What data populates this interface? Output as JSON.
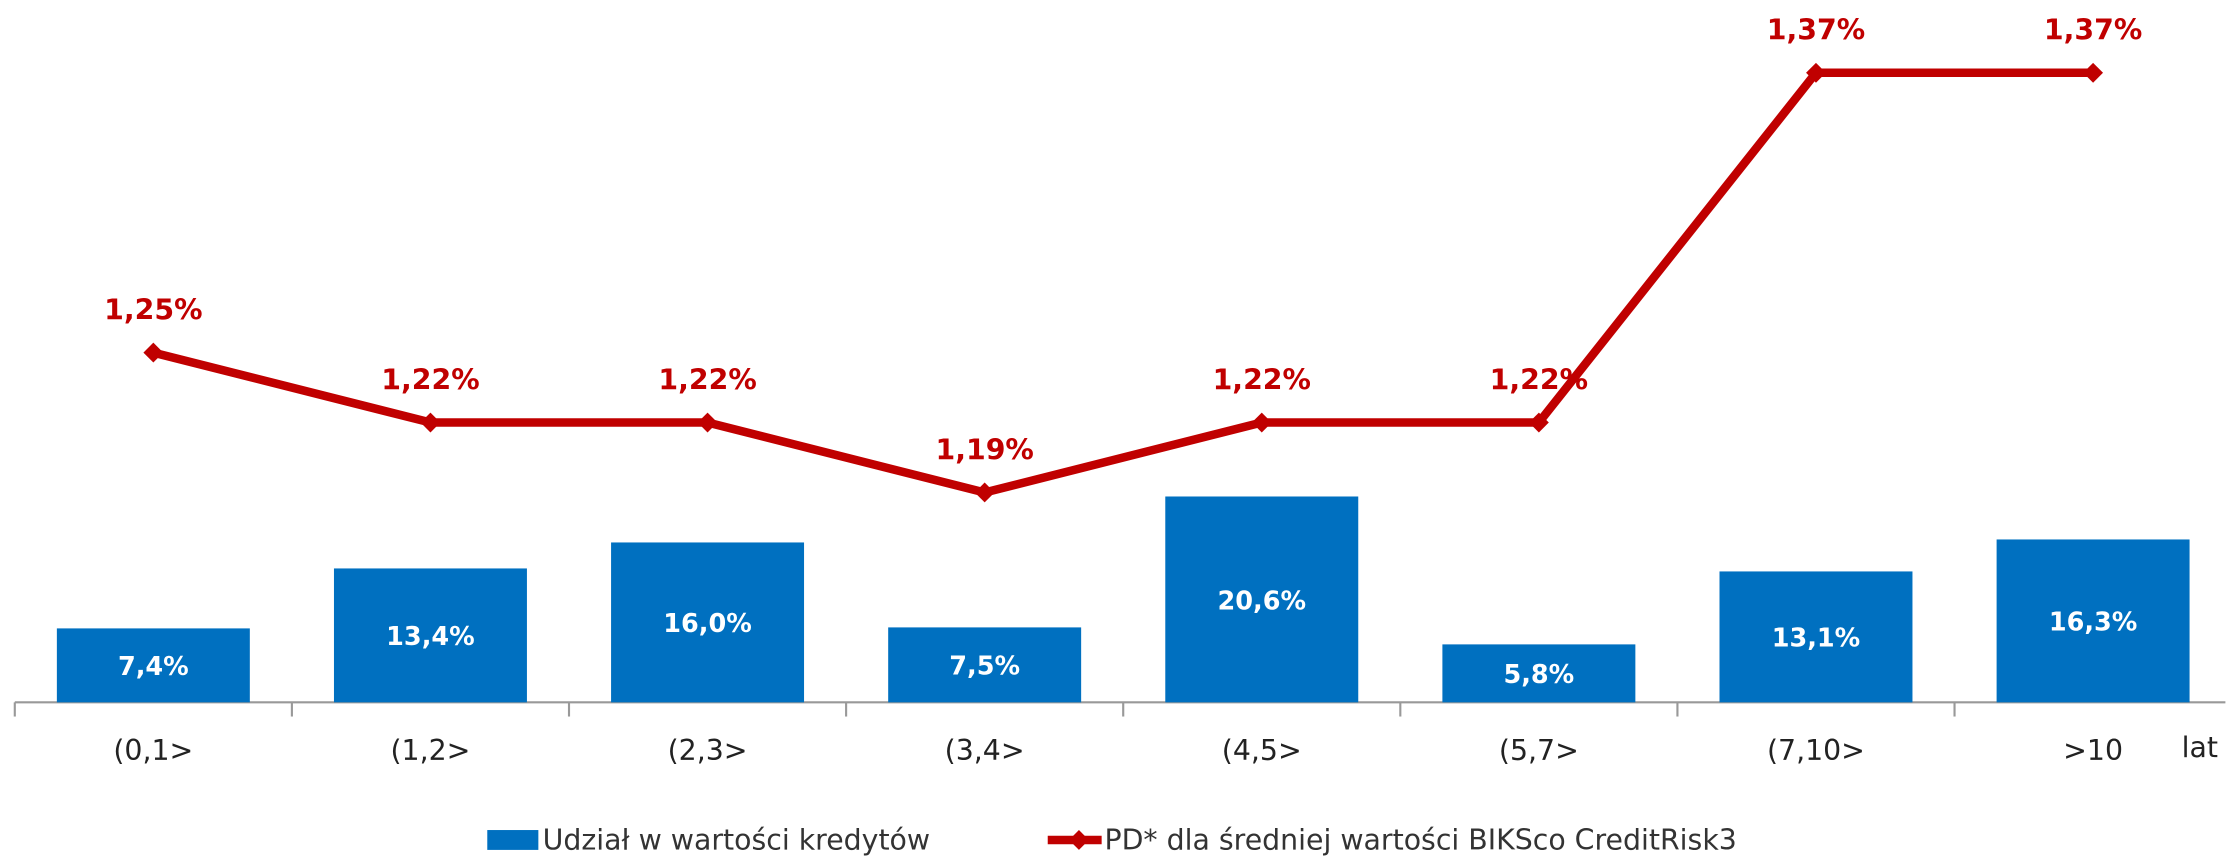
{
  "chart_data": {
    "type": "combo",
    "categories": [
      "(0,1>",
      "(1,2>",
      "(2,3>",
      "(3,4>",
      "(4,5>",
      "(5,7>",
      "(7,10>",
      ">10"
    ],
    "x_label": "lat",
    "series": [
      {
        "name": "Udział w wartości kredytów",
        "type": "bar",
        "color": "#0070c0",
        "values": [
          7.4,
          13.4,
          16.0,
          7.5,
          20.6,
          5.8,
          13.1,
          16.3
        ],
        "value_labels": [
          "7,4%",
          "13,4%",
          "16,0%",
          "7,5%",
          "20,6%",
          "5,8%",
          "13,1%",
          "16,3%"
        ]
      },
      {
        "name": "PD* dla średniej wartości BIKSco CreditRisk3",
        "type": "line",
        "axis": "y2",
        "color": "#c00000",
        "values": [
          1.25,
          1.22,
          1.22,
          1.19,
          1.22,
          1.22,
          1.37,
          1.37
        ],
        "value_labels": [
          "1,25%",
          "1,22%",
          "1,22%",
          "1,19%",
          "1,22%",
          "1,22%",
          "1,37%",
          "1,37%"
        ]
      }
    ],
    "ylim": [
      0,
      70
    ],
    "y2lim": [
      1.1,
      1.4
    ],
    "legend": "bottom"
  }
}
